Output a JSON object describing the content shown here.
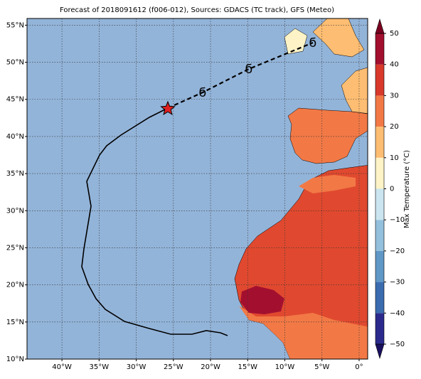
{
  "chart_data": {
    "type": "map",
    "title": "Forecast of 2018091612 (f006-012), Sources: GDACS (TC track), GFS (Meteo)",
    "xlim": [
      -44.7,
      1.15
    ],
    "ylim": [
      10,
      55.9
    ],
    "xticks": [
      {
        "value": -40,
        "label": "40°W"
      },
      {
        "value": -35,
        "label": "35°W"
      },
      {
        "value": -30,
        "label": "30°W"
      },
      {
        "value": -25,
        "label": "25°W"
      },
      {
        "value": -20,
        "label": "20°W"
      },
      {
        "value": -15,
        "label": "15°W"
      },
      {
        "value": -10,
        "label": "10°W"
      },
      {
        "value": -5,
        "label": "5°W"
      },
      {
        "value": 0,
        "label": "0°"
      }
    ],
    "yticks": [
      {
        "value": 10,
        "label": "10°N"
      },
      {
        "value": 15,
        "label": "15°N"
      },
      {
        "value": 20,
        "label": "20°N"
      },
      {
        "value": 25,
        "label": "25°N"
      },
      {
        "value": 30,
        "label": "30°N"
      },
      {
        "value": 35,
        "label": "35°N"
      },
      {
        "value": 40,
        "label": "40°N"
      },
      {
        "value": 45,
        "label": "45°N"
      },
      {
        "value": 50,
        "label": "50°N"
      },
      {
        "value": 55,
        "label": "55°N"
      }
    ],
    "grid": true,
    "colorbar_label": "Max Temperature (°C)",
    "clim": [
      -50,
      50
    ],
    "cbar_ticks": [
      {
        "value": -50,
        "label": "−50"
      },
      {
        "value": -40,
        "label": "−40"
      },
      {
        "value": -30,
        "label": "−30"
      },
      {
        "value": -20,
        "label": "−20"
      },
      {
        "value": -10,
        "label": "−10"
      },
      0,
      10,
      20,
      30,
      40,
      50
    ],
    "cbar_colors": [
      "#2b2a8c",
      "#3b6cb0",
      "#5f97c6",
      "#93c0dc",
      "#cae5ef",
      "#fdf3c6",
      "#fdbd72",
      "#f27946",
      "#d8392b",
      "#a3102f"
    ],
    "cbar_extend_colors": [
      "#1a1060",
      "#7a0020"
    ]
  }
}
